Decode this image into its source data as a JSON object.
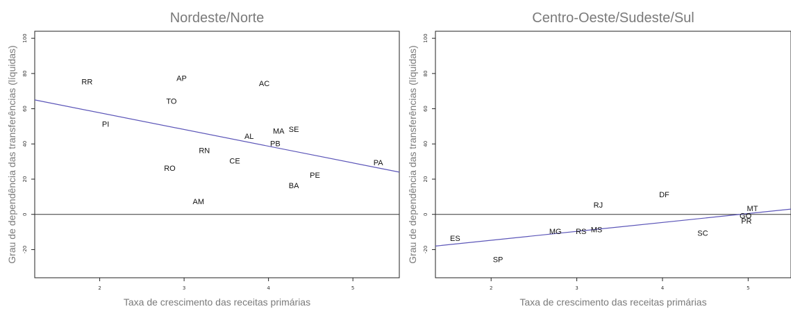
{
  "chart_data": [
    {
      "type": "scatter",
      "title": "Nordeste/Norte",
      "xlabel": "Taxa de crescimento das receitas primárias",
      "ylabel": "Grau de dependência das transferências (líquidas)",
      "xlim": [
        1.23,
        5.55
      ],
      "ylim": [
        -36,
        104
      ],
      "x_ticks": [
        "2",
        "3",
        "4",
        "5"
      ],
      "y_ticks": [
        "-20",
        "0",
        "20",
        "40",
        "60",
        "80",
        "100"
      ],
      "zero_line": true,
      "trend_line": {
        "x": [
          1.23,
          5.55
        ],
        "y": [
          65,
          24
        ],
        "color": "#5b55b8"
      },
      "points": [
        {
          "label": "RR",
          "x": 1.85,
          "y": 75
        },
        {
          "label": "AP",
          "x": 2.97,
          "y": 77
        },
        {
          "label": "AC",
          "x": 3.95,
          "y": 74
        },
        {
          "label": "TO",
          "x": 2.85,
          "y": 64
        },
        {
          "label": "PI",
          "x": 2.07,
          "y": 51
        },
        {
          "label": "MA",
          "x": 4.12,
          "y": 47
        },
        {
          "label": "SE",
          "x": 4.3,
          "y": 48
        },
        {
          "label": "AL",
          "x": 3.77,
          "y": 44
        },
        {
          "label": "PB",
          "x": 4.08,
          "y": 40
        },
        {
          "label": "RN",
          "x": 3.24,
          "y": 36
        },
        {
          "label": "CE",
          "x": 3.6,
          "y": 30
        },
        {
          "label": "RO",
          "x": 2.83,
          "y": 26
        },
        {
          "label": "PA",
          "x": 5.3,
          "y": 29
        },
        {
          "label": "PE",
          "x": 4.55,
          "y": 22
        },
        {
          "label": "BA",
          "x": 4.3,
          "y": 16
        },
        {
          "label": "AM",
          "x": 3.17,
          "y": 7
        }
      ]
    },
    {
      "type": "scatter",
      "title": "Centro-Oeste/Sudeste/Sul",
      "xlabel": "Taxa de crescimento das receitas primárias",
      "ylabel": "Grau de dependência das transferências (líquidas)",
      "xlim": [
        1.35,
        5.5
      ],
      "ylim": [
        -36,
        104
      ],
      "x_ticks": [
        "2",
        "3",
        "4",
        "5"
      ],
      "y_ticks": [
        "-20",
        "0",
        "20",
        "40",
        "60",
        "80",
        "100"
      ],
      "zero_line": true,
      "trend_line": {
        "x": [
          1.35,
          5.5
        ],
        "y": [
          -18,
          3
        ],
        "color": "#5b55b8"
      },
      "points": [
        {
          "label": "DF",
          "x": 4.02,
          "y": 11
        },
        {
          "label": "RJ",
          "x": 3.25,
          "y": 5
        },
        {
          "label": "MT",
          "x": 5.05,
          "y": 3
        },
        {
          "label": "GO",
          "x": 4.97,
          "y": -1
        },
        {
          "label": "PR",
          "x": 4.98,
          "y": -4
        },
        {
          "label": "SC",
          "x": 4.47,
          "y": -11
        },
        {
          "label": "MG",
          "x": 2.75,
          "y": -10
        },
        {
          "label": "RS",
          "x": 3.05,
          "y": -10
        },
        {
          "label": "MS",
          "x": 3.23,
          "y": -9
        },
        {
          "label": "ES",
          "x": 1.58,
          "y": -14
        },
        {
          "label": "SP",
          "x": 2.08,
          "y": -26
        }
      ]
    }
  ]
}
